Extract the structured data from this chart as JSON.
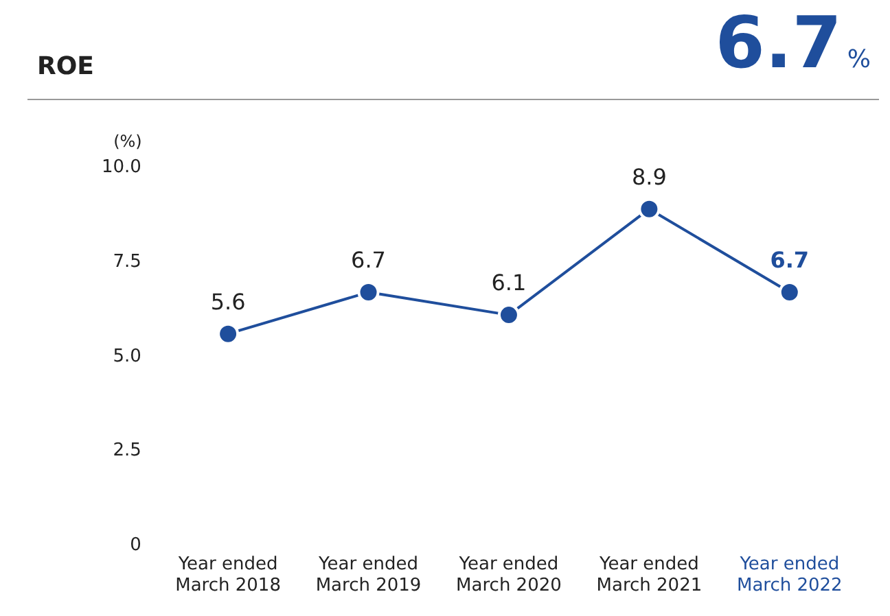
{
  "chart_data": {
    "type": "line",
    "title": "ROE",
    "ylabel": "(%)",
    "annotations": [
      "6.7",
      "%"
    ],
    "categories": [
      "Year ended\nMarch 2018",
      "Year ended\nMarch 2019",
      "Year ended\nMarch 2020",
      "Year ended\nMarch 2021",
      "Year ended\nMarch 2022"
    ],
    "series": [
      {
        "color": "#1f4e9c",
        "values": [
          5.6,
          6.7,
          6.1,
          8.9,
          6.7
        ]
      }
    ],
    "ylim": [
      0,
      10
    ],
    "yticks": [
      0,
      {
        "value": 2.5,
        "label": "2.5"
      },
      {
        "value": 5,
        "label": "5.0"
      },
      {
        "value": 7.5,
        "label": "7.5"
      },
      {
        "value": 10,
        "label": "10.0"
      }
    ],
    "grid": false,
    "legend": false,
    "marker": "circle",
    "line_style": "solid",
    "data_labels": true
  }
}
